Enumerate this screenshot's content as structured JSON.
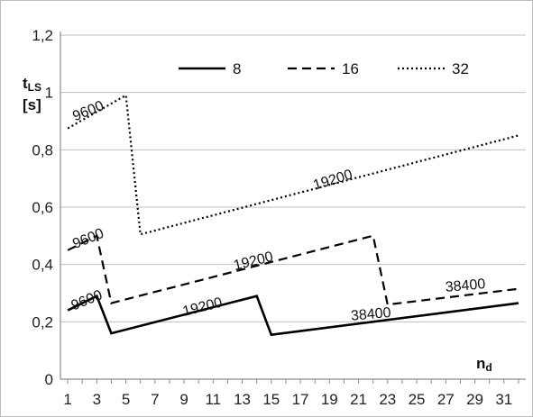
{
  "chart_data": {
    "type": "line",
    "title": "",
    "ylabel": "t_LS [s]",
    "ylabel_main": "t",
    "ylabel_sub": "LS",
    "ylabel_unit": "[s]",
    "xlabel": "n_d",
    "xlabel_main": "n",
    "xlabel_sub": "d",
    "ylim": [
      0,
      1.2
    ],
    "yticks": [
      "0",
      "0,2",
      "0,4",
      "0,6",
      "0,8",
      "1",
      "1,2"
    ],
    "xlim": [
      0.5,
      32.5
    ],
    "xticks": [
      1,
      3,
      5,
      7,
      9,
      11,
      13,
      15,
      17,
      19,
      21,
      23,
      25,
      27,
      29,
      31
    ],
    "grid": "horizontal",
    "legend_position": "top",
    "series": [
      {
        "name": "8",
        "style": "solid",
        "points": [
          [
            1,
            0.24
          ],
          [
            3,
            0.29
          ],
          [
            4,
            0.16
          ],
          [
            14,
            0.29
          ],
          [
            15,
            0.155
          ],
          [
            32,
            0.265
          ]
        ]
      },
      {
        "name": "16",
        "style": "dashed",
        "points": [
          [
            1,
            0.45
          ],
          [
            3,
            0.5
          ],
          [
            4,
            0.265
          ],
          [
            22,
            0.5
          ],
          [
            23,
            0.26
          ],
          [
            32,
            0.315
          ]
        ]
      },
      {
        "name": "32",
        "style": "dotted",
        "points": [
          [
            1,
            0.875
          ],
          [
            5,
            0.99
          ],
          [
            6,
            0.505
          ],
          [
            32,
            0.85
          ]
        ]
      }
    ],
    "annotations": [
      {
        "text": "9600",
        "x": 1.5,
        "y": 0.9,
        "angle": -22
      },
      {
        "text": "19200",
        "x": 18,
        "y": 0.66,
        "angle": -17
      },
      {
        "text": "9600",
        "x": 1.5,
        "y": 0.455,
        "angle": -22
      },
      {
        "text": "19200",
        "x": 12.5,
        "y": 0.38,
        "angle": -14
      },
      {
        "text": "9600",
        "x": 1.4,
        "y": 0.24,
        "angle": -22
      },
      {
        "text": "19200",
        "x": 9,
        "y": 0.22,
        "angle": -14
      },
      {
        "text": "38400",
        "x": 20.5,
        "y": 0.205,
        "angle": -5
      },
      {
        "text": "38400",
        "x": 27,
        "y": 0.305,
        "angle": -5
      }
    ]
  }
}
